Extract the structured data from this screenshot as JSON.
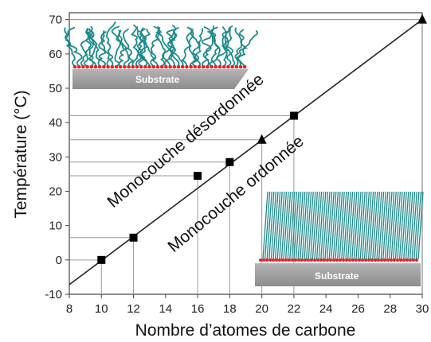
{
  "chart_data": {
    "type": "scatter",
    "xlabel": "Nombre d’atomes de carbone",
    "ylabel": "Température (°C)",
    "xlim": [
      8,
      30
    ],
    "ylim": [
      -10,
      72
    ],
    "x_ticks": [
      8,
      10,
      12,
      14,
      16,
      18,
      20,
      22,
      24,
      26,
      28,
      30
    ],
    "y_ticks": [
      -10,
      0,
      10,
      20,
      30,
      40,
      50,
      60,
      70
    ],
    "grid": false,
    "series": [
      {
        "marker": "square",
        "color": "#000000",
        "points": [
          {
            "x": 10,
            "y": 0
          },
          {
            "x": 12,
            "y": 6.5
          },
          {
            "x": 16,
            "y": 24.5
          },
          {
            "x": 18,
            "y": 28.5
          },
          {
            "x": 22,
            "y": 42
          }
        ]
      },
      {
        "marker": "triangle",
        "color": "#000000",
        "points": [
          {
            "x": 20,
            "y": 35
          },
          {
            "x": 30,
            "y": 70
          }
        ]
      }
    ],
    "trend_line": {
      "x": [
        8,
        30
      ],
      "y": [
        -7.2,
        70
      ]
    },
    "annotations": {
      "upper_region": "Monocouche désordonnée",
      "lower_region": "Monocouche ordonnée",
      "substrate_label": "Substrate"
    },
    "colors": {
      "chain": "#1e8a8a",
      "headgroup": "#e8202a",
      "substrate": "#a0a0a0"
    }
  }
}
